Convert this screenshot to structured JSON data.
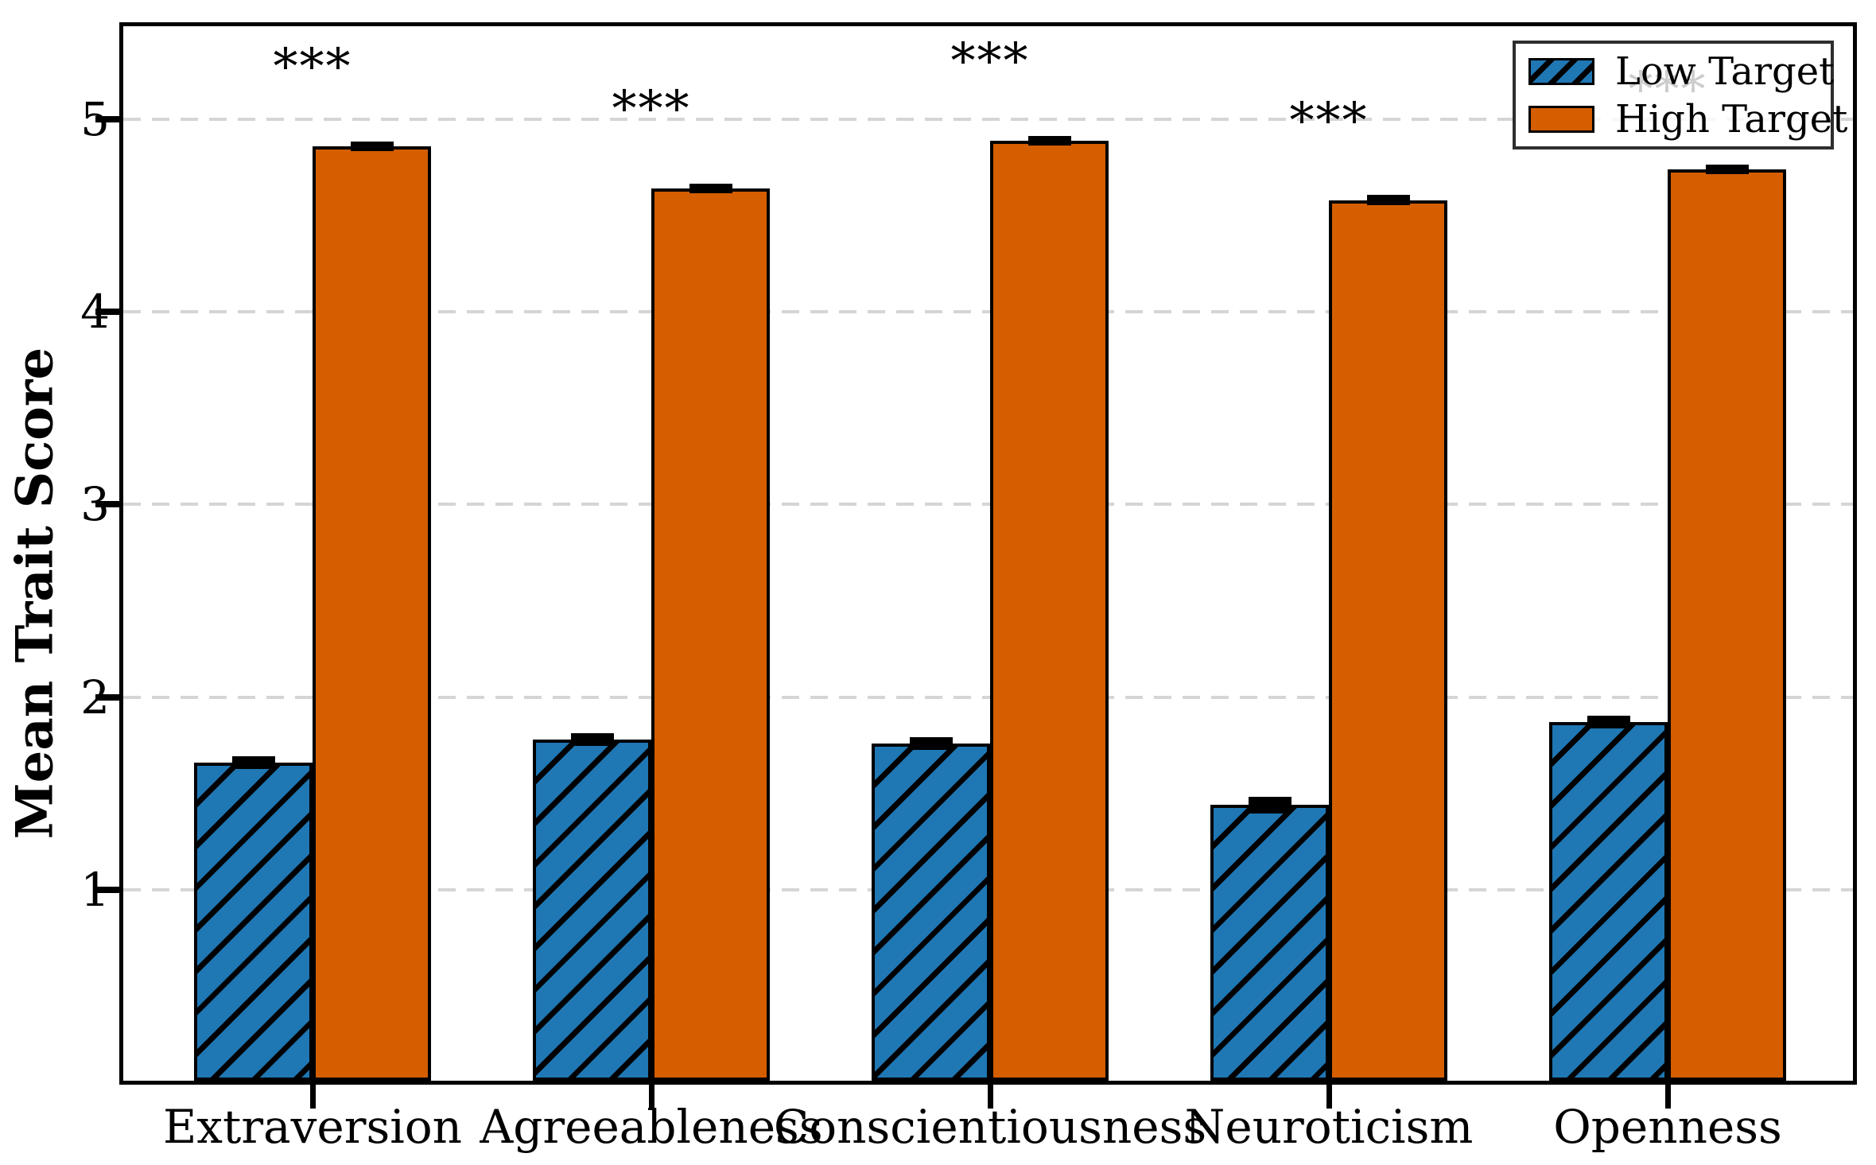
{
  "figure": {
    "ylabel": "Mean Trait Score",
    "background_color": "#ffffff",
    "grid_color": "#d5d5d5",
    "spine_color": "#000000"
  },
  "legend": {
    "position": "upper right",
    "items": [
      {
        "label": "Low Target",
        "swatch": "blue-hatched"
      },
      {
        "label": "High Target",
        "swatch": "orange-solid"
      }
    ]
  },
  "chart_data": {
    "type": "bar",
    "title": "",
    "xlabel": "",
    "ylabel": "Mean Trait Score",
    "categories": [
      "Extraversion",
      "Agreeableness",
      "Conscientiousness",
      "Neuroticism",
      "Openness"
    ],
    "series": [
      {
        "name": "Low Target",
        "values": [
          1.66,
          1.78,
          1.76,
          1.44,
          1.87
        ],
        "sem": [
          0.02,
          0.02,
          0.02,
          0.03,
          0.02
        ],
        "color": "#1f77b4",
        "edge_color": "#000000",
        "hatch": "/"
      },
      {
        "name": "High Target",
        "values": [
          4.86,
          4.64,
          4.89,
          4.58,
          4.74
        ],
        "sem": [
          0.012,
          0.012,
          0.012,
          0.015,
          0.012
        ],
        "color": "#d55e00",
        "edge_color": "#000000",
        "hatch": ""
      }
    ],
    "significance_labels": [
      "***",
      "***",
      "***",
      "***",
      "***"
    ],
    "significance_offset": 0.45,
    "yticks": [
      1,
      2,
      3,
      4,
      5
    ],
    "ylim": [
      0,
      5.5
    ],
    "grid": "horizontal-dashed",
    "legend_position": "upper right",
    "error_bars": "sem-caps-black"
  }
}
